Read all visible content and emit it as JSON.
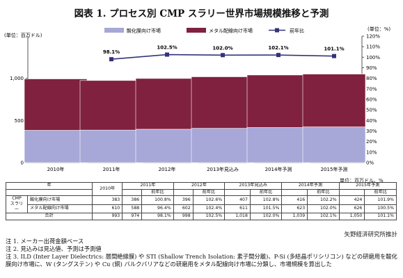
{
  "title": "図表 1. プロセス別 CMP スラリー世界市場規模推移と予測",
  "chart_data": {
    "type": "bar",
    "stacked": true,
    "categories": [
      "2010年",
      "2011年",
      "2012年",
      "2013年見込み",
      "2014年予測",
      "2015年予測"
    ],
    "series": [
      {
        "name": "酸化膜向け市場",
        "values": [
          383,
          386,
          396,
          407,
          416,
          424
        ],
        "color": "#a7a7d8"
      },
      {
        "name": "メタル配線向け市場",
        "values": [
          610,
          588,
          602,
          611,
          623,
          626
        ],
        "color": "#80213f"
      }
    ],
    "line_series": {
      "name": "前年比",
      "x": [
        "2011年",
        "2012年",
        "2013年見込み",
        "2014年予測",
        "2015年予測"
      ],
      "values": [
        98.1,
        102.5,
        102.0,
        102.1,
        101.1
      ],
      "labels": [
        "98.1%",
        "102.5%",
        "102.0%",
        "102.1%",
        "101.1%"
      ],
      "color": "#33337a"
    },
    "ylabel_left": "(単位：百万ドル)",
    "ylabel_right": "(単位：%)",
    "ylim_left": [
      0,
      1500
    ],
    "yticks_left": [
      "0",
      "500",
      "1,000"
    ],
    "ylim_right": [
      0,
      120
    ],
    "yticks_right": [
      "0%",
      "10%",
      "20%",
      "30%",
      "40%",
      "50%",
      "60%",
      "70%",
      "80%",
      "90%",
      "100%",
      "110%",
      "120%"
    ],
    "grid": false,
    "legend": "top"
  },
  "table": {
    "unit_note": "単位：百万ドル、%",
    "h_year": "年",
    "h_year1": "2010年",
    "h_years": [
      "2011年",
      "2012年",
      "2013年見込み",
      "2014年予測",
      "2015年予測"
    ],
    "h_yoy": "前年比",
    "group_label": "CMP\nスラリー",
    "row1_label": "酸化膜向け市場",
    "row1": [
      "383",
      "386",
      "100.8%",
      "396",
      "102.6%",
      "407",
      "102.8%",
      "416",
      "102.2%",
      "424",
      "101.9%"
    ],
    "row2_label": "メタル配線向け市場",
    "row2": [
      "610",
      "588",
      "96.4%",
      "602",
      "102.4%",
      "611",
      "101.5%",
      "623",
      "102.0%",
      "626",
      "100.5%"
    ],
    "total_label": "合計",
    "total": [
      "993",
      "974",
      "98.1%",
      "998",
      "102.5%",
      "1,018",
      "102.0%",
      "1,039",
      "102.1%",
      "1,050",
      "101.1%"
    ]
  },
  "source": "矢野経済研究所推計",
  "notes": [
    "注 1. メーカー出荷金額ベース",
    "注 2. 見込みは見込値、予測は予測値",
    "注 3. ILD (Inter Layer Dielectrics: 層間絶縁膜) や STI (Shallow Trench Isolation: 素子間分離)、P-Si (多結晶ポリシリコン) などの研磨用を酸化膜向け市場に、W (タングステン) や Cu (銅) バルクバリアなどの研磨用をメタル配線向け市場に分類し、市場規模を算出した"
  ]
}
